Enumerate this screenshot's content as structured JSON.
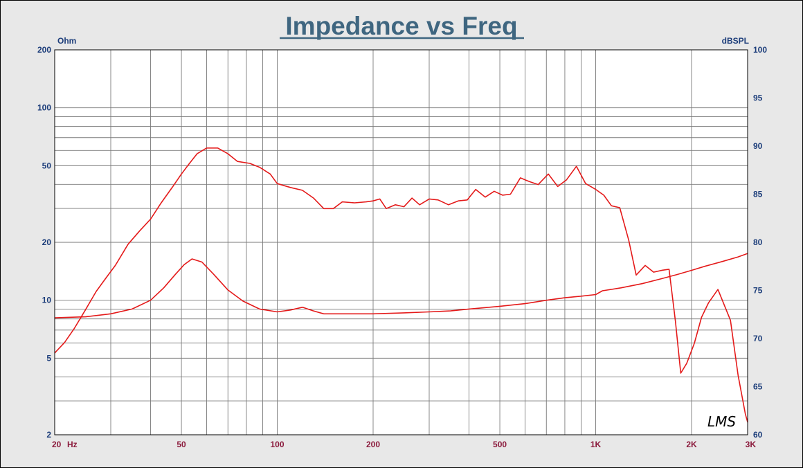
{
  "colors": {
    "background": "#e8e8e8",
    "plot_background": "#ffffff",
    "title": "#3f6680",
    "left_axis_labels": "#1c3d7a",
    "x_axis_labels": "#8b1a3c",
    "curve": "#e41a1a",
    "grid": "#7a7a7a"
  },
  "chart_data": {
    "type": "line",
    "title": "Impedance vs Freq",
    "xlabel_unit": "Hz",
    "ylabel_left": "Ohm",
    "ylabel_right": "dBSPL",
    "x_scale": "log",
    "y_left_scale": "log",
    "xlim": [
      20,
      3000
    ],
    "ylim_left": [
      2,
      200
    ],
    "ylim_right": [
      60,
      100
    ],
    "grid": true,
    "x_ticks": [
      {
        "v": 20,
        "label": "20"
      },
      {
        "v": 50,
        "label": "50"
      },
      {
        "v": 100,
        "label": "100"
      },
      {
        "v": 200,
        "label": "200"
      },
      {
        "v": 500,
        "label": "500"
      },
      {
        "v": 1000,
        "label": "1K"
      },
      {
        "v": 2000,
        "label": "2K"
      },
      {
        "v": 3000,
        "label": "3K"
      }
    ],
    "y_left_ticks": [
      {
        "v": 200,
        "label": "200"
      },
      {
        "v": 100,
        "label": "100"
      },
      {
        "v": 50,
        "label": "50"
      },
      {
        "v": 20,
        "label": "20"
      },
      {
        "v": 10,
        "label": "10"
      },
      {
        "v": 5,
        "label": "5"
      },
      {
        "v": 2,
        "label": "2"
      }
    ],
    "y_right_ticks": [
      {
        "v": 100,
        "label": "100"
      },
      {
        "v": 95,
        "label": "95"
      },
      {
        "v": 90,
        "label": "90"
      },
      {
        "v": 85,
        "label": "85"
      },
      {
        "v": 80,
        "label": "80"
      },
      {
        "v": 75,
        "label": "75"
      },
      {
        "v": 70,
        "label": "70"
      },
      {
        "v": 65,
        "label": "65"
      },
      {
        "v": 60,
        "label": "60"
      }
    ],
    "series": [
      {
        "axis": "right",
        "points": [
          [
            20,
            68.5
          ],
          [
            21.5,
            69.6
          ],
          [
            23,
            71.0
          ],
          [
            25,
            73.0
          ],
          [
            27,
            74.9
          ],
          [
            29,
            76.3
          ],
          [
            31,
            77.6
          ],
          [
            34,
            79.8
          ],
          [
            37,
            81.2
          ],
          [
            40,
            82.4
          ],
          [
            43,
            84.0
          ],
          [
            47,
            85.8
          ],
          [
            50,
            87.1
          ],
          [
            53,
            88.2
          ],
          [
            56,
            89.2
          ],
          [
            60,
            89.8
          ],
          [
            65,
            89.8
          ],
          [
            70,
            89.2
          ],
          [
            75,
            88.4
          ],
          [
            82,
            88.2
          ],
          [
            88,
            87.8
          ],
          [
            95,
            87.1
          ],
          [
            100,
            86.1
          ],
          [
            110,
            85.7
          ],
          [
            120,
            85.4
          ],
          [
            130,
            84.6
          ],
          [
            140,
            83.5
          ],
          [
            150,
            83.5
          ],
          [
            160,
            84.2
          ],
          [
            175,
            84.1
          ],
          [
            190,
            84.2
          ],
          [
            200,
            84.3
          ],
          [
            210,
            84.5
          ],
          [
            220,
            83.5
          ],
          [
            235,
            83.9
          ],
          [
            250,
            83.7
          ],
          [
            265,
            84.6
          ],
          [
            280,
            83.9
          ],
          [
            300,
            84.5
          ],
          [
            320,
            84.4
          ],
          [
            345,
            83.9
          ],
          [
            370,
            84.3
          ],
          [
            395,
            84.4
          ],
          [
            420,
            85.5
          ],
          [
            450,
            84.7
          ],
          [
            480,
            85.3
          ],
          [
            510,
            84.9
          ],
          [
            540,
            85.0
          ],
          [
            580,
            86.7
          ],
          [
            620,
            86.3
          ],
          [
            660,
            86.0
          ],
          [
            710,
            87.1
          ],
          [
            760,
            85.8
          ],
          [
            810,
            86.5
          ],
          [
            870,
            87.9
          ],
          [
            930,
            86.1
          ],
          [
            1000,
            85.5
          ],
          [
            1060,
            84.9
          ],
          [
            1120,
            83.8
          ],
          [
            1190,
            83.6
          ],
          [
            1270,
            80.2
          ],
          [
            1340,
            76.6
          ],
          [
            1430,
            77.6
          ],
          [
            1520,
            76.9
          ],
          [
            1620,
            77.1
          ],
          [
            1700,
            77.2
          ],
          [
            1780,
            71.8
          ],
          [
            1850,
            66.4
          ],
          [
            1930,
            67.4
          ],
          [
            2040,
            69.5
          ],
          [
            2150,
            72.2
          ],
          [
            2260,
            73.7
          ],
          [
            2420,
            75.1
          ],
          [
            2650,
            71.9
          ],
          [
            2800,
            66.2
          ],
          [
            2950,
            62.2
          ],
          [
            3000,
            61.3
          ]
        ]
      },
      {
        "axis": "left",
        "points": [
          [
            20,
            8.1
          ],
          [
            25,
            8.2
          ],
          [
            30,
            8.5
          ],
          [
            35,
            9.0
          ],
          [
            40,
            10.0
          ],
          [
            44,
            11.6
          ],
          [
            48,
            13.7
          ],
          [
            51,
            15.3
          ],
          [
            54,
            16.4
          ],
          [
            58,
            15.8
          ],
          [
            63,
            13.7
          ],
          [
            70,
            11.3
          ],
          [
            78,
            9.9
          ],
          [
            88,
            9.0
          ],
          [
            100,
            8.7
          ],
          [
            110,
            8.9
          ],
          [
            120,
            9.2
          ],
          [
            130,
            8.8
          ],
          [
            140,
            8.5
          ],
          [
            160,
            8.5
          ],
          [
            200,
            8.5
          ],
          [
            250,
            8.6
          ],
          [
            300,
            8.7
          ],
          [
            350,
            8.8
          ],
          [
            400,
            9.0
          ],
          [
            500,
            9.3
          ],
          [
            600,
            9.6
          ],
          [
            700,
            10.0
          ],
          [
            800,
            10.3
          ],
          [
            900,
            10.5
          ],
          [
            1000,
            10.7
          ],
          [
            1050,
            11.2
          ],
          [
            1200,
            11.6
          ],
          [
            1400,
            12.2
          ],
          [
            1600,
            12.9
          ],
          [
            1800,
            13.6
          ],
          [
            2000,
            14.3
          ],
          [
            2200,
            15.0
          ],
          [
            2500,
            15.9
          ],
          [
            2800,
            16.8
          ],
          [
            3000,
            17.5
          ]
        ]
      }
    ]
  },
  "watermark": "LMS"
}
